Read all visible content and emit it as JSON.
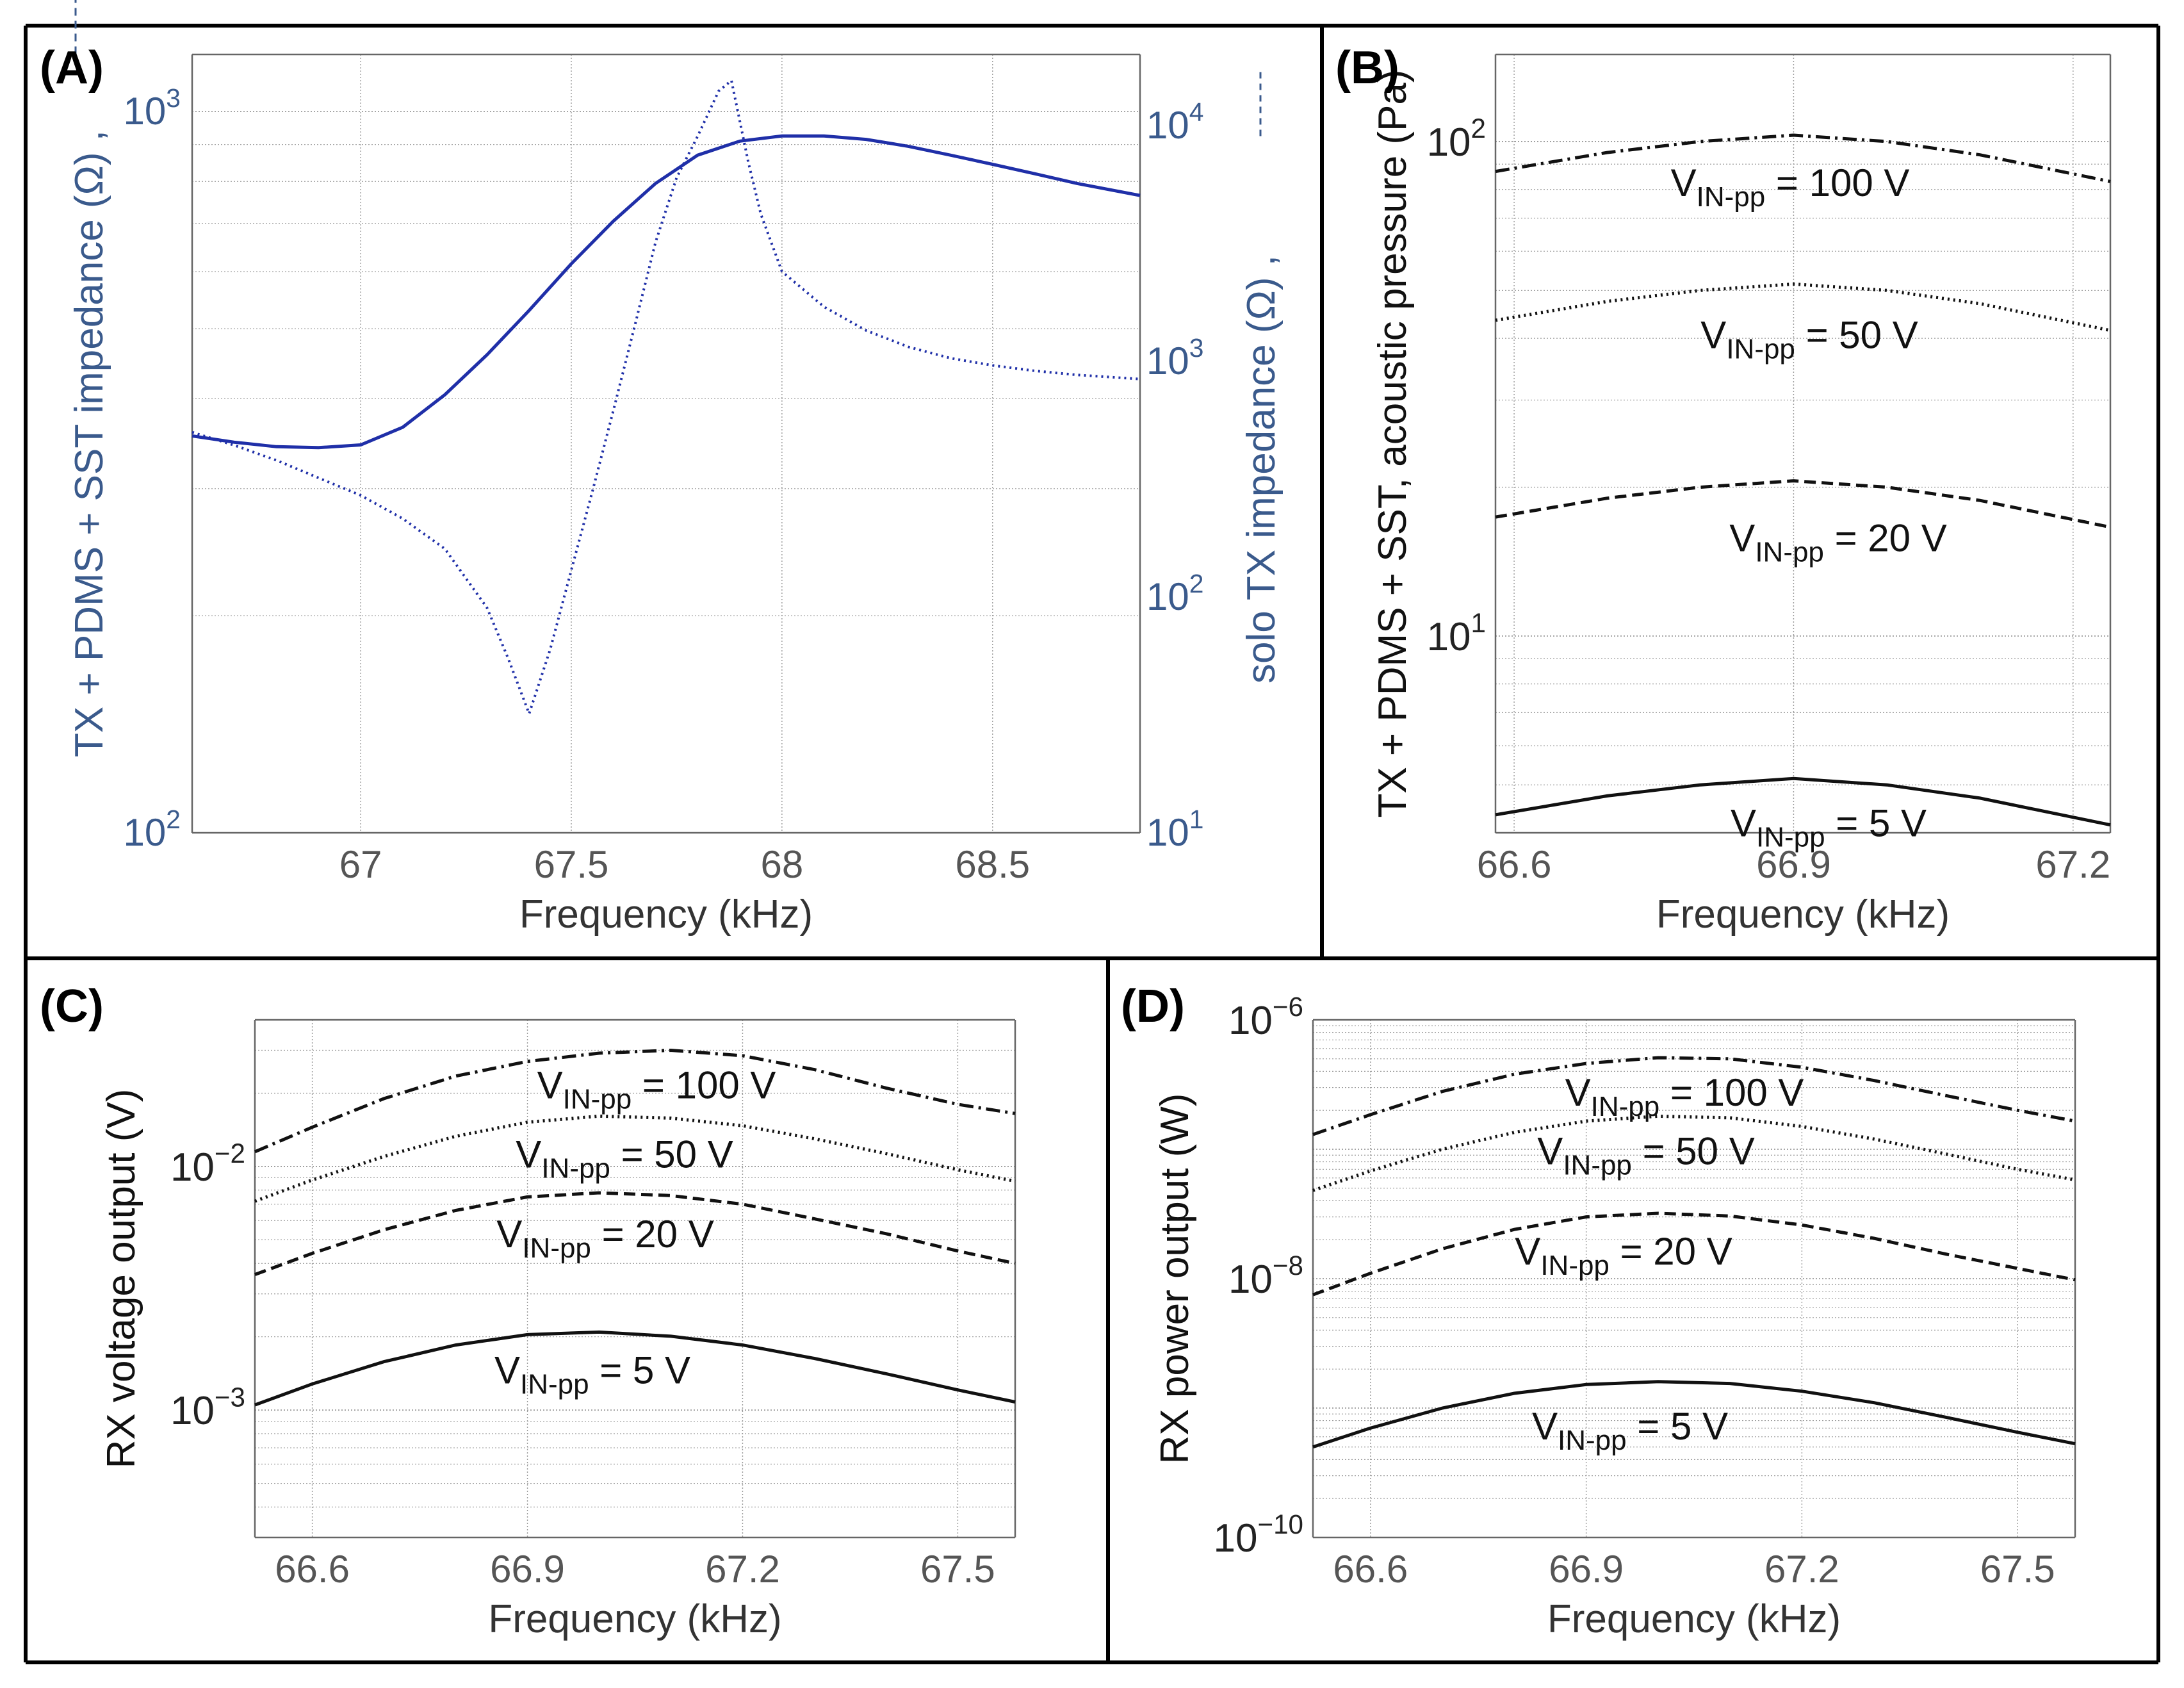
{
  "colors": {
    "blue": "#1f2fa8",
    "axisBlue": "#3a5a8c",
    "black": "#111111",
    "grid": "#9a9a9a",
    "tick": "#555555"
  },
  "chart_data": [
    {
      "id": "A",
      "panel_label": "(A)",
      "type": "line",
      "xlabel": "Frequency (kHz)",
      "ylabel_left": "TX + PDMS + SST impedance (Ω) ,",
      "ylabel_right": "solo TX impedance (Ω) ,",
      "xlim": [
        66.6,
        68.85
      ],
      "ylim_left": [
        100,
        1200
      ],
      "ylim_right": [
        10,
        20000
      ],
      "xticks": [
        67,
        67.5,
        68,
        68.5
      ],
      "xticklabels": [
        "67",
        "67.5",
        "68",
        "68.5"
      ],
      "yticks_left": [
        {
          "base": "10",
          "exp": "3"
        },
        {
          "base": "10",
          "exp": "2"
        }
      ],
      "yticks_right": [
        {
          "base": "10",
          "exp": "4"
        },
        {
          "base": "10",
          "exp": "3"
        },
        {
          "base": "10",
          "exp": "2"
        },
        {
          "base": "10",
          "exp": "1"
        }
      ],
      "series": [
        {
          "name": "TX + PDMS + SST impedance",
          "axis": "left",
          "style": "solid",
          "x": [
            66.6,
            66.7,
            66.8,
            66.9,
            67.0,
            67.1,
            67.2,
            67.3,
            67.4,
            67.5,
            67.6,
            67.7,
            67.8,
            67.9,
            68.0,
            68.1,
            68.2,
            68.3,
            68.4,
            68.5,
            68.6,
            68.7,
            68.85
          ],
          "y": [
            355,
            348,
            343,
            342,
            345,
            365,
            405,
            460,
            530,
            615,
            705,
            795,
            870,
            910,
            925,
            925,
            915,
            895,
            870,
            845,
            820,
            795,
            765
          ]
        },
        {
          "name": "solo TX impedance",
          "axis": "right",
          "style": "dotted",
          "x": [
            66.6,
            66.7,
            66.8,
            66.9,
            67.0,
            67.1,
            67.2,
            67.3,
            67.35,
            67.4,
            67.45,
            67.5,
            67.55,
            67.6,
            67.65,
            67.7,
            67.75,
            67.8,
            67.85,
            67.88,
            67.92,
            67.95,
            68.0,
            68.1,
            68.2,
            68.3,
            68.4,
            68.5,
            68.6,
            68.7,
            68.85
          ],
          "y": [
            500,
            440,
            380,
            320,
            270,
            215,
            160,
            90,
            55,
            32,
            60,
            130,
            280,
            620,
            1400,
            3200,
            6000,
            9000,
            14000,
            15500,
            7000,
            4200,
            2400,
            1700,
            1350,
            1150,
            1030,
            960,
            910,
            875,
            840
          ]
        }
      ]
    },
    {
      "id": "B",
      "panel_label": "(B)",
      "type": "line",
      "xlabel": "Frequency (kHz)",
      "ylabel": "TX + PDMS + SST, acoustic pressure (Pa)",
      "xlim": [
        66.58,
        67.24
      ],
      "ylim": [
        4,
        150
      ],
      "xticks": [
        66.6,
        66.9,
        67.2
      ],
      "xticklabels": [
        "66.6",
        "66.9",
        "67.2"
      ],
      "yticks": [
        {
          "base": "10",
          "exp": "2"
        },
        {
          "base": "10",
          "exp": "1"
        }
      ],
      "series": [
        {
          "name": "VIN-pp = 100 V",
          "label_main": "V",
          "label_sub": "IN-pp",
          "label_rest": " = 100 V",
          "style": "dashdot",
          "x": [
            66.58,
            66.7,
            66.8,
            66.9,
            67.0,
            67.1,
            67.24
          ],
          "y": [
            87,
            95,
            100,
            103,
            100,
            94,
            83
          ]
        },
        {
          "name": "VIN-pp = 50 V",
          "label_main": "V",
          "label_sub": "IN-pp",
          "label_rest": " = 50 V",
          "style": "dotted",
          "x": [
            66.58,
            66.7,
            66.8,
            66.9,
            67.0,
            67.1,
            67.24
          ],
          "y": [
            43.5,
            47.5,
            50,
            51.5,
            50,
            47,
            41.5
          ]
        },
        {
          "name": "VIN-pp = 20 V",
          "label_main": "V",
          "label_sub": "IN-pp",
          "label_rest": " = 20 V",
          "style": "dashed",
          "x": [
            66.58,
            66.7,
            66.8,
            66.9,
            67.0,
            67.1,
            67.24
          ],
          "y": [
            17.4,
            19,
            20,
            20.6,
            20,
            18.8,
            16.6
          ]
        },
        {
          "name": "VIN-pp = 5 V",
          "label_main": "V",
          "label_sub": "IN-pp",
          "label_rest": " = 5 V",
          "style": "solid",
          "x": [
            66.58,
            66.7,
            66.8,
            66.9,
            67.0,
            67.1,
            67.24
          ],
          "y": [
            4.35,
            4.75,
            5.0,
            5.15,
            5.0,
            4.7,
            4.15
          ]
        }
      ]
    },
    {
      "id": "C",
      "panel_label": "(C)",
      "type": "line",
      "xlabel": "Frequency (kHz)",
      "ylabel": "RX voltage output (V)",
      "xlim": [
        66.52,
        67.58
      ],
      "ylim": [
        0.0003,
        0.04
      ],
      "xticks": [
        66.6,
        66.9,
        67.2,
        67.5
      ],
      "xticklabels": [
        "66.6",
        "66.9",
        "67.2",
        "67.5"
      ],
      "yticks": [
        {
          "base": "10",
          "exp": "−2"
        },
        {
          "base": "10",
          "exp": "−3"
        }
      ],
      "series": [
        {
          "name": "VIN-pp = 100 V",
          "label_main": "V",
          "label_sub": "IN-pp",
          "label_rest": " = 100 V",
          "style": "dashdot",
          "x": [
            66.52,
            66.6,
            66.7,
            66.8,
            66.9,
            67.0,
            67.1,
            67.2,
            67.3,
            67.4,
            67.5,
            67.58
          ],
          "y": [
            0.0115,
            0.0145,
            0.019,
            0.0235,
            0.027,
            0.0292,
            0.03,
            0.0285,
            0.025,
            0.021,
            0.018,
            0.0165
          ]
        },
        {
          "name": "VIN-pp = 50 V",
          "label_main": "V",
          "label_sub": "IN-pp",
          "label_rest": " = 50 V",
          "style": "dotted",
          "x": [
            66.52,
            66.6,
            66.7,
            66.8,
            66.9,
            67.0,
            67.1,
            67.2,
            67.3,
            67.4,
            67.5,
            67.58
          ],
          "y": [
            0.0072,
            0.0088,
            0.011,
            0.0133,
            0.0152,
            0.0161,
            0.0158,
            0.0147,
            0.013,
            0.0113,
            0.0097,
            0.0087
          ]
        },
        {
          "name": "VIN-pp = 20 V",
          "label_main": "V",
          "label_sub": "IN-pp",
          "label_rest": " = 20 V",
          "style": "dashed",
          "x": [
            66.52,
            66.6,
            66.7,
            66.8,
            66.9,
            67.0,
            67.1,
            67.2,
            67.3,
            67.4,
            67.5,
            67.58
          ],
          "y": [
            0.0036,
            0.0044,
            0.0055,
            0.0066,
            0.0075,
            0.0078,
            0.0076,
            0.007,
            0.0061,
            0.0053,
            0.0045,
            0.004
          ]
        },
        {
          "name": "VIN-pp = 5 V",
          "label_main": "V",
          "label_sub": "IN-pp",
          "label_rest": " = 5 V",
          "style": "solid",
          "x": [
            66.52,
            66.6,
            66.7,
            66.8,
            66.9,
            67.0,
            67.1,
            67.2,
            67.3,
            67.4,
            67.5,
            67.58
          ],
          "y": [
            0.00105,
            0.00128,
            0.00158,
            0.00185,
            0.00204,
            0.00209,
            0.00201,
            0.00185,
            0.00163,
            0.00141,
            0.00121,
            0.00108
          ]
        }
      ]
    },
    {
      "id": "D",
      "panel_label": "(D)",
      "type": "line",
      "xlabel": "Frequency (kHz)",
      "ylabel": "RX power output (W)",
      "xlim": [
        66.52,
        67.58
      ],
      "ylim": [
        1e-10,
        1e-06
      ],
      "xticks": [
        66.6,
        66.9,
        67.2,
        67.5
      ],
      "xticklabels": [
        "66.6",
        "66.9",
        "67.2",
        "67.5"
      ],
      "yticks": [
        {
          "base": "10",
          "exp": "−6"
        },
        {
          "base": "10",
          "exp": "−8"
        },
        {
          "base": "10",
          "exp": "−10"
        }
      ],
      "series": [
        {
          "name": "VIN-pp = 100 V",
          "label_main": "V",
          "label_sub": "IN-pp",
          "label_rest": " = 100 V",
          "style": "dashdot",
          "x": [
            66.52,
            66.6,
            66.7,
            66.8,
            66.9,
            67.0,
            67.1,
            67.2,
            67.3,
            67.4,
            67.5,
            67.58
          ],
          "y": [
            1.3e-07,
            1.85e-07,
            2.8e-07,
            3.8e-07,
            4.6e-07,
            5.1e-07,
            5e-07,
            4.3e-07,
            3.4e-07,
            2.6e-07,
            2e-07,
            1.65e-07
          ]
        },
        {
          "name": "VIN-pp = 50 V",
          "label_main": "V",
          "label_sub": "IN-pp",
          "label_rest": " = 50 V",
          "style": "dotted",
          "x": [
            66.52,
            66.6,
            66.7,
            66.8,
            66.9,
            67.0,
            67.1,
            67.2,
            67.3,
            67.4,
            67.5,
            67.58
          ],
          "y": [
            4.8e-08,
            6.8e-08,
            1e-07,
            1.35e-07,
            1.65e-07,
            1.8e-07,
            1.75e-07,
            1.5e-07,
            1.2e-07,
            9.2e-08,
            7e-08,
            5.8e-08
          ]
        },
        {
          "name": "VIN-pp = 20 V",
          "label_main": "V",
          "label_sub": "IN-pp",
          "label_rest": " = 20 V",
          "style": "dashed",
          "x": [
            66.52,
            66.6,
            66.7,
            66.8,
            66.9,
            67.0,
            67.1,
            67.2,
            67.3,
            67.4,
            67.5,
            67.58
          ],
          "y": [
            7.5e-09,
            1.1e-08,
            1.7e-08,
            2.4e-08,
            3e-08,
            3.2e-08,
            3.05e-08,
            2.6e-08,
            2.05e-08,
            1.55e-08,
            1.2e-08,
            9.8e-09
          ]
        },
        {
          "name": "VIN-pp = 5 V",
          "label_main": "V",
          "label_sub": "IN-pp",
          "label_rest": " = 5 V",
          "style": "solid",
          "x": [
            66.52,
            66.6,
            66.7,
            66.8,
            66.9,
            67.0,
            67.1,
            67.2,
            67.3,
            67.4,
            67.5,
            67.58
          ],
          "y": [
            5e-10,
            7e-10,
            1e-09,
            1.3e-09,
            1.52e-09,
            1.6e-09,
            1.55e-09,
            1.35e-09,
            1.1e-09,
            8.5e-10,
            6.5e-10,
            5.3e-10
          ]
        }
      ]
    }
  ]
}
